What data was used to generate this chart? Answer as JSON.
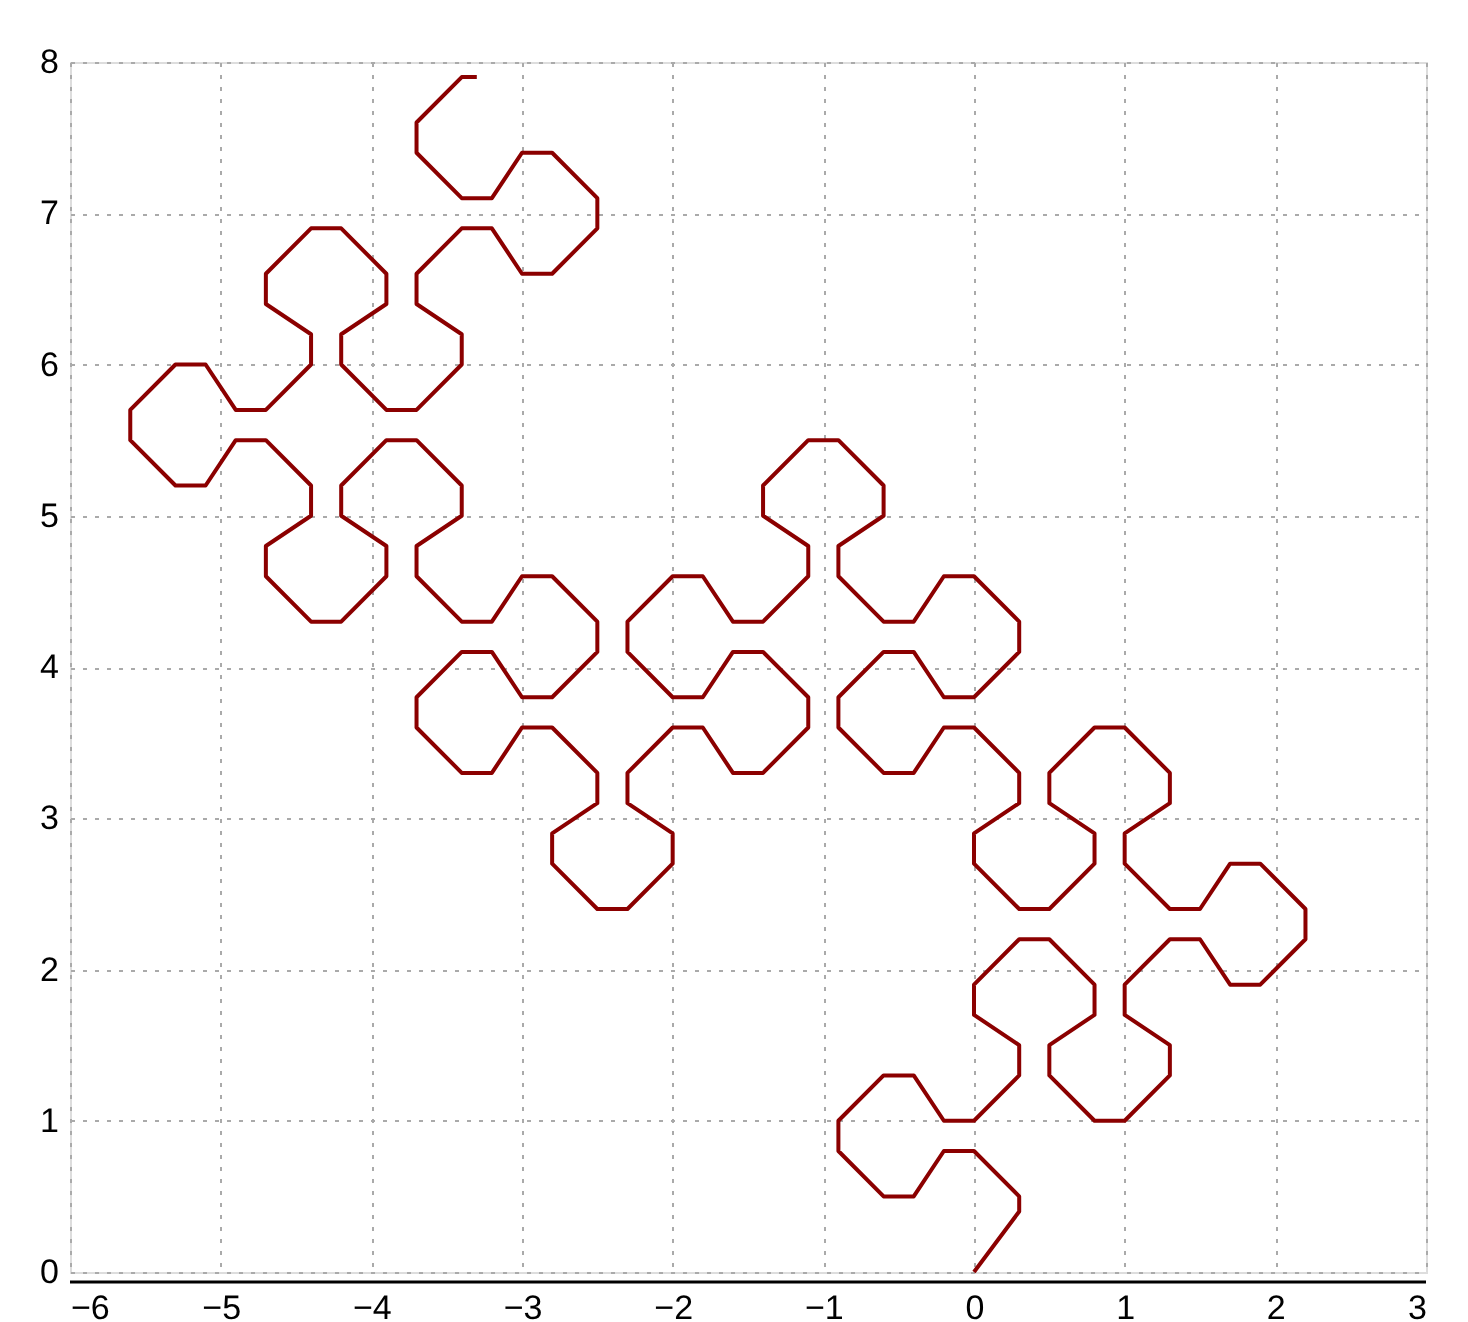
{
  "chart_data": {
    "type": "line",
    "xlim": [
      -6,
      3
    ],
    "ylim": [
      0,
      8
    ],
    "xticks": [
      -6,
      -5,
      -4,
      -3,
      -2,
      -1,
      0,
      1,
      2,
      3
    ],
    "yticks": [
      0,
      1,
      2,
      3,
      4,
      5,
      6,
      7,
      8
    ],
    "grid": true,
    "series": [
      {
        "color": "#8b0000",
        "x": [
          0,
          0.3,
          0.3,
          0,
          -0.2,
          -0.4,
          -0.6,
          -0.9,
          -0.9,
          -0.6,
          -0.4,
          -0.2,
          0,
          0.3,
          0.3,
          0,
          0,
          0.3,
          0.5,
          0.8,
          0.8,
          0.5,
          0.5,
          0.8,
          1.0,
          1.3,
          1.3,
          1.0,
          1.0,
          1.3,
          1.5,
          1.7,
          1.9,
          2.2,
          2.2,
          1.9,
          1.7,
          1.5,
          1.3,
          1.0,
          1.0,
          1.3,
          1.3,
          1.0,
          0.8,
          0.5,
          0.5,
          0.8,
          0.8,
          0.5,
          0.3,
          0,
          0,
          0.3,
          0.3,
          0,
          -0.2,
          -0.4,
          -0.6,
          -0.9,
          -0.9,
          -0.6,
          -0.4,
          -0.2,
          0,
          0.3,
          0.3,
          0,
          -0.2,
          -0.4,
          -0.6,
          -0.9,
          -0.9,
          -0.6,
          -0.6,
          -0.9,
          -1.1,
          -1.4,
          -1.4,
          -1.1,
          -1.1,
          -1.4,
          -1.6,
          -1.8,
          -2.0,
          -2.3,
          -2.3,
          -2.0,
          -1.8,
          -1.6,
          -1.4,
          -1.1,
          -1.1,
          -1.4,
          -1.6,
          -1.8,
          -2.0,
          -2.3,
          -2.3,
          -2.0,
          -2.0,
          -2.3,
          -2.5,
          -2.8,
          -2.8,
          -2.5,
          -2.5,
          -2.8,
          -3.0,
          -3.2,
          -3.4,
          -3.7,
          -3.7,
          -3.4,
          -3.2,
          -3.0,
          -2.8,
          -2.5,
          -2.5,
          -2.8,
          -3.0,
          -3.2,
          -3.4,
          -3.7,
          -3.7,
          -3.4,
          -3.4,
          -3.7,
          -3.9,
          -4.2,
          -4.2,
          -3.9,
          -3.9,
          -4.2,
          -4.4,
          -4.7,
          -4.7,
          -4.4,
          -4.4,
          -4.7,
          -4.9,
          -5.1,
          -5.3,
          -5.6,
          -5.6,
          -5.3,
          -5.1,
          -4.9,
          -4.7,
          -4.4,
          -4.4,
          -4.7,
          -4.7,
          -4.4,
          -4.2,
          -3.9,
          -3.9,
          -4.2,
          -4.2,
          -3.9,
          -3.7,
          -3.4,
          -3.4,
          -3.7,
          -3.7,
          -3.4,
          -3.2,
          -3.0,
          -2.8,
          -2.5,
          -2.5,
          -2.8,
          -3.0,
          -3.2,
          -3.4,
          -3.7,
          -3.7,
          -3.4,
          -3.3
        ],
        "values": [
          0,
          0.4,
          0.5,
          0.8,
          0.8,
          0.5,
          0.5,
          0.8,
          1.0,
          1.3,
          1.3,
          1.0,
          1.0,
          1.3,
          1.5,
          1.7,
          1.9,
          2.2,
          2.2,
          1.9,
          1.7,
          1.5,
          1.3,
          1.0,
          1.0,
          1.3,
          1.5,
          1.7,
          1.9,
          2.2,
          2.2,
          1.9,
          1.9,
          2.2,
          2.4,
          2.7,
          2.7,
          2.4,
          2.4,
          2.7,
          2.9,
          3.1,
          3.3,
          3.6,
          3.6,
          3.3,
          3.1,
          2.9,
          2.7,
          2.4,
          2.4,
          2.7,
          2.9,
          3.1,
          3.3,
          3.6,
          3.6,
          3.3,
          3.3,
          3.6,
          3.8,
          4.1,
          4.1,
          3.8,
          3.8,
          4.1,
          4.3,
          4.6,
          4.6,
          4.3,
          4.3,
          4.6,
          4.8,
          5.0,
          5.2,
          5.5,
          5.5,
          5.2,
          5.0,
          4.8,
          4.6,
          4.3,
          4.3,
          4.6,
          4.6,
          4.3,
          4.1,
          3.8,
          3.8,
          4.1,
          4.1,
          3.8,
          3.6,
          3.3,
          3.3,
          3.6,
          3.6,
          3.3,
          3.1,
          2.9,
          2.7,
          2.4,
          2.4,
          2.7,
          2.9,
          3.1,
          3.3,
          3.6,
          3.6,
          3.3,
          3.3,
          3.6,
          3.8,
          4.1,
          4.1,
          3.8,
          3.8,
          4.1,
          4.3,
          4.6,
          4.6,
          4.3,
          4.3,
          4.6,
          4.8,
          5.0,
          5.2,
          5.5,
          5.5,
          5.2,
          5.0,
          4.8,
          4.6,
          4.3,
          4.3,
          4.6,
          4.8,
          5.0,
          5.2,
          5.5,
          5.5,
          5.2,
          5.2,
          5.5,
          5.7,
          6.0,
          6.0,
          5.7,
          5.7,
          6.0,
          6.2,
          6.4,
          6.6,
          6.9,
          6.9,
          6.6,
          6.4,
          6.2,
          6.0,
          5.7,
          5.7,
          6.0,
          6.2,
          6.4,
          6.6,
          6.9,
          6.9,
          6.6,
          6.6,
          6.9,
          7.1,
          7.4,
          7.4,
          7.1,
          7.1,
          7.4,
          7.6,
          7.9,
          7.9
        ]
      }
    ]
  }
}
